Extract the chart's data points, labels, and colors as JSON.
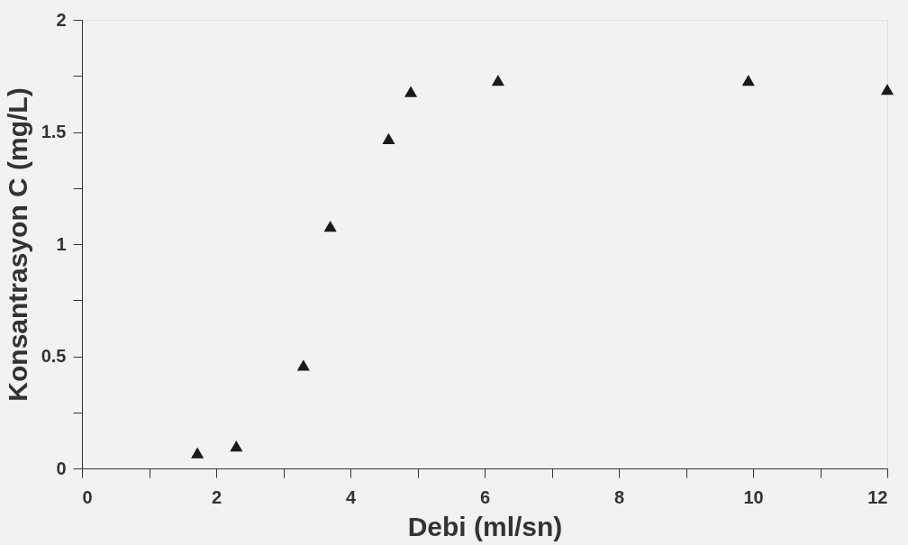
{
  "chart_data": {
    "type": "scatter",
    "xlabel": "Debi  (ml/sn)",
    "ylabel": "Konsantrasyon C (mg/L)",
    "x": [
      1.72,
      2.3,
      3.3,
      3.7,
      4.57,
      4.9,
      6.2,
      9.93,
      12
    ],
    "series": [
      {
        "color": "#1a1a1a",
        "values": [
          0.07,
          0.1,
          0.46,
          1.08,
          1.47,
          1.68,
          1.73,
          1.73,
          1.69
        ]
      }
    ],
    "marker": "triangle",
    "grid": false,
    "legend": false,
    "xlim": [
      0,
      12
    ],
    "ylim": [
      0,
      2
    ],
    "xticks": [
      0,
      {
        "value": 1,
        "label": null
      },
      2,
      {
        "value": 3,
        "label": null
      },
      4,
      {
        "value": 5,
        "label": null
      },
      6,
      {
        "value": 7,
        "label": null
      },
      8,
      {
        "value": 9,
        "label": null
      },
      10,
      {
        "value": 11,
        "label": null
      },
      12
    ],
    "yticks": [
      0,
      {
        "value": 0.25,
        "label": null
      },
      0.5,
      {
        "value": 0.75,
        "label": null
      },
      1,
      {
        "value": 1.25,
        "label": null
      },
      1.5,
      {
        "value": 1.75,
        "label": null
      },
      2
    ]
  }
}
